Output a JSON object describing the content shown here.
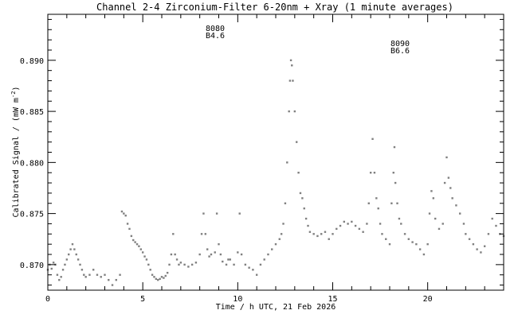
{
  "chart_data": {
    "type": "scatter",
    "title": "Channel 2-4   Zirconium-Filter   6-20nm + Xray   (1 minute averages)",
    "xlabel": "Time / h UTC, 21 Feb 2026",
    "ylabel": "Calibrated Signal / (mW m",
    "ylabel_sup": "-2",
    "ylabel_end": ")",
    "xlim": [
      0,
      24
    ],
    "ylim": [
      0.8675,
      0.8945
    ],
    "xticks": [
      0,
      5,
      10,
      15,
      20
    ],
    "xtick_labels": [
      "0",
      "5",
      "10",
      "15",
      "20"
    ],
    "yticks": [
      0.87,
      0.875,
      0.88,
      0.885,
      0.89
    ],
    "ytick_labels": [
      "0.870",
      "0.875",
      "0.880",
      "0.885",
      "0.890"
    ],
    "annotations": [
      {
        "line1": "8080",
        "line2": "B4.6",
        "x": 9.3,
        "y": 0.8928
      },
      {
        "line1": "8090",
        "line2": "B6.6",
        "x": 18.2,
        "y": 0.8914
      }
    ],
    "series": [
      {
        "color": "#808080",
        "points": [
          [
            0.0,
            0.8695
          ],
          [
            0.1,
            0.87
          ],
          [
            0.2,
            0.8696
          ],
          [
            0.3,
            0.8702
          ],
          [
            0.4,
            0.87
          ],
          [
            0.5,
            0.869
          ],
          [
            0.6,
            0.8685
          ],
          [
            0.7,
            0.8688
          ],
          [
            0.8,
            0.8695
          ],
          [
            0.9,
            0.87
          ],
          [
            1.0,
            0.8705
          ],
          [
            1.1,
            0.871
          ],
          [
            1.2,
            0.8715
          ],
          [
            1.3,
            0.872
          ],
          [
            1.4,
            0.8715
          ],
          [
            1.5,
            0.871
          ],
          [
            1.6,
            0.8705
          ],
          [
            1.7,
            0.87
          ],
          [
            1.8,
            0.8695
          ],
          [
            1.9,
            0.869
          ],
          [
            2.0,
            0.8688
          ],
          [
            2.2,
            0.869
          ],
          [
            2.4,
            0.8695
          ],
          [
            2.6,
            0.869
          ],
          [
            2.8,
            0.8688
          ],
          [
            3.0,
            0.869
          ],
          [
            3.2,
            0.8685
          ],
          [
            3.4,
            0.868
          ],
          [
            3.6,
            0.8685
          ],
          [
            3.8,
            0.869
          ],
          [
            3.9,
            0.8752
          ],
          [
            4.0,
            0.875
          ],
          [
            4.1,
            0.8748
          ],
          [
            4.2,
            0.874
          ],
          [
            4.3,
            0.8735
          ],
          [
            4.4,
            0.8728
          ],
          [
            4.5,
            0.8724
          ],
          [
            4.6,
            0.8722
          ],
          [
            4.7,
            0.872
          ],
          [
            4.8,
            0.8718
          ],
          [
            4.9,
            0.8715
          ],
          [
            5.0,
            0.8712
          ],
          [
            5.1,
            0.8708
          ],
          [
            5.2,
            0.8705
          ],
          [
            5.3,
            0.87
          ],
          [
            5.4,
            0.8695
          ],
          [
            5.5,
            0.869
          ],
          [
            5.6,
            0.8688
          ],
          [
            5.7,
            0.8686
          ],
          [
            5.8,
            0.8685
          ],
          [
            5.9,
            0.8686
          ],
          [
            6.0,
            0.8688
          ],
          [
            6.1,
            0.8687
          ],
          [
            6.2,
            0.8689
          ],
          [
            6.3,
            0.8692
          ],
          [
            6.4,
            0.87
          ],
          [
            6.5,
            0.871
          ],
          [
            6.6,
            0.873
          ],
          [
            6.7,
            0.871
          ],
          [
            6.8,
            0.8705
          ],
          [
            6.9,
            0.87
          ],
          [
            7.0,
            0.8702
          ],
          [
            7.2,
            0.87
          ],
          [
            7.4,
            0.8698
          ],
          [
            7.6,
            0.87
          ],
          [
            7.8,
            0.8702
          ],
          [
            8.0,
            0.871
          ],
          [
            8.1,
            0.873
          ],
          [
            8.2,
            0.875
          ],
          [
            8.3,
            0.873
          ],
          [
            8.4,
            0.8715
          ],
          [
            8.5,
            0.8708
          ],
          [
            8.6,
            0.871
          ],
          [
            8.8,
            0.8712
          ],
          [
            8.9,
            0.875
          ],
          [
            9.0,
            0.872
          ],
          [
            9.1,
            0.871
          ],
          [
            9.2,
            0.8703
          ],
          [
            9.4,
            0.87
          ],
          [
            9.5,
            0.8705
          ],
          [
            9.6,
            0.8705
          ],
          [
            9.8,
            0.87
          ],
          [
            10.0,
            0.8712
          ],
          [
            10.1,
            0.875
          ],
          [
            10.2,
            0.871
          ],
          [
            10.4,
            0.87
          ],
          [
            10.6,
            0.8697
          ],
          [
            10.8,
            0.8695
          ],
          [
            11.0,
            0.869
          ],
          [
            11.2,
            0.87
          ],
          [
            11.4,
            0.8705
          ],
          [
            11.6,
            0.871
          ],
          [
            11.8,
            0.8715
          ],
          [
            12.0,
            0.872
          ],
          [
            12.2,
            0.8725
          ],
          [
            12.3,
            0.873
          ],
          [
            12.4,
            0.874
          ],
          [
            12.5,
            0.876
          ],
          [
            12.6,
            0.88
          ],
          [
            12.7,
            0.885
          ],
          [
            12.75,
            0.888
          ],
          [
            12.8,
            0.89
          ],
          [
            12.85,
            0.8895
          ],
          [
            12.9,
            0.888
          ],
          [
            13.0,
            0.885
          ],
          [
            13.1,
            0.882
          ],
          [
            13.2,
            0.879
          ],
          [
            13.3,
            0.877
          ],
          [
            13.4,
            0.8765
          ],
          [
            13.5,
            0.8755
          ],
          [
            13.6,
            0.8745
          ],
          [
            13.7,
            0.8738
          ],
          [
            13.8,
            0.8732
          ],
          [
            14.0,
            0.873
          ],
          [
            14.2,
            0.8728
          ],
          [
            14.4,
            0.873
          ],
          [
            14.6,
            0.8732
          ],
          [
            14.8,
            0.8725
          ],
          [
            15.0,
            0.873
          ],
          [
            15.2,
            0.8735
          ],
          [
            15.4,
            0.8738
          ],
          [
            15.6,
            0.8742
          ],
          [
            15.8,
            0.874
          ],
          [
            16.0,
            0.8742
          ],
          [
            16.2,
            0.8738
          ],
          [
            16.4,
            0.8735
          ],
          [
            16.6,
            0.8732
          ],
          [
            16.8,
            0.874
          ],
          [
            16.9,
            0.876
          ],
          [
            17.0,
            0.879
          ],
          [
            17.1,
            0.8823
          ],
          [
            17.2,
            0.879
          ],
          [
            17.3,
            0.8765
          ],
          [
            17.4,
            0.8755
          ],
          [
            17.5,
            0.874
          ],
          [
            17.6,
            0.873
          ],
          [
            17.8,
            0.8725
          ],
          [
            18.0,
            0.872
          ],
          [
            18.1,
            0.876
          ],
          [
            18.2,
            0.879
          ],
          [
            18.25,
            0.8815
          ],
          [
            18.3,
            0.878
          ],
          [
            18.4,
            0.876
          ],
          [
            18.5,
            0.8745
          ],
          [
            18.6,
            0.874
          ],
          [
            18.8,
            0.873
          ],
          [
            19.0,
            0.8725
          ],
          [
            19.2,
            0.8722
          ],
          [
            19.4,
            0.872
          ],
          [
            19.6,
            0.8715
          ],
          [
            19.8,
            0.871
          ],
          [
            20.0,
            0.872
          ],
          [
            20.1,
            0.875
          ],
          [
            20.2,
            0.8772
          ],
          [
            20.3,
            0.8765
          ],
          [
            20.4,
            0.8745
          ],
          [
            20.6,
            0.8735
          ],
          [
            20.8,
            0.874
          ],
          [
            20.9,
            0.878
          ],
          [
            21.0,
            0.8805
          ],
          [
            21.1,
            0.8785
          ],
          [
            21.2,
            0.8775
          ],
          [
            21.3,
            0.8765
          ],
          [
            21.5,
            0.8758
          ],
          [
            21.7,
            0.875
          ],
          [
            21.9,
            0.874
          ],
          [
            22.0,
            0.873
          ],
          [
            22.2,
            0.8725
          ],
          [
            22.4,
            0.872
          ],
          [
            22.6,
            0.8715
          ],
          [
            22.8,
            0.8712
          ],
          [
            23.0,
            0.8718
          ],
          [
            23.2,
            0.873
          ],
          [
            23.4,
            0.8745
          ],
          [
            23.6,
            0.8738
          ],
          [
            23.8,
            0.873
          ],
          [
            24.0,
            0.8728
          ]
        ]
      }
    ]
  }
}
